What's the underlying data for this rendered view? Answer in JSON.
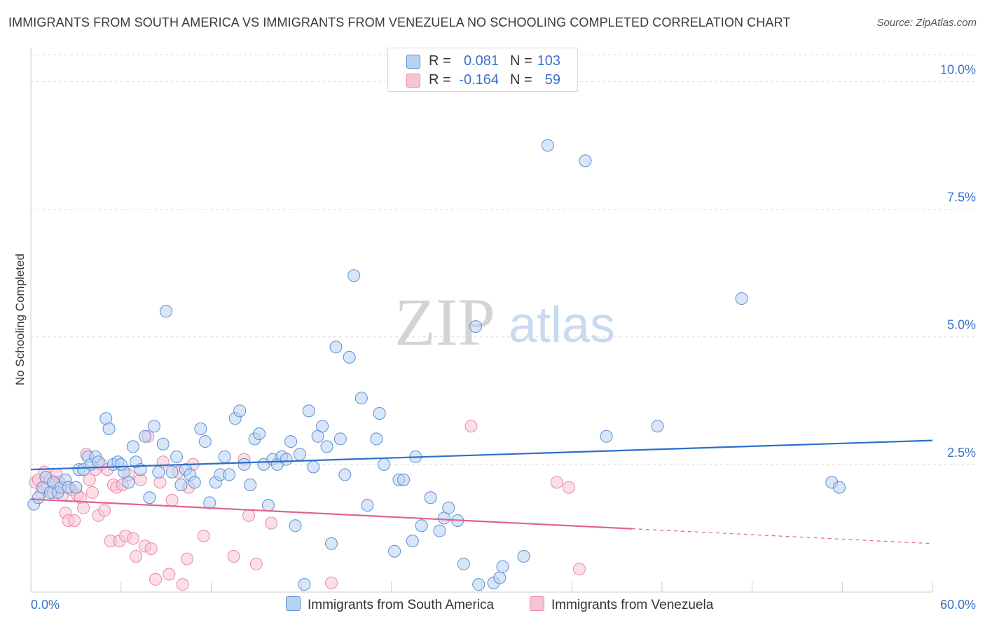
{
  "title": "IMMIGRANTS FROM SOUTH AMERICA VS IMMIGRANTS FROM VENEZUELA NO SCHOOLING COMPLETED CORRELATION CHART",
  "source": "Source: ZipAtlas.com",
  "watermark": {
    "zip": "ZIP",
    "atlas": "atlas"
  },
  "legend": {
    "rows": [
      {
        "r_label": "R =",
        "r_value": "0.081",
        "n_label": "N =",
        "n_value": "103"
      },
      {
        "r_label": "R =",
        "r_value": "-0.164",
        "n_label": "N =",
        "n_value": "59"
      }
    ]
  },
  "colors": {
    "blue_fill": "#b8d2f2",
    "blue_stroke": "#5b8fd4",
    "blue_line": "#2a6fcc",
    "pink_fill": "#f8c4d4",
    "pink_stroke": "#e888a8",
    "pink_line": "#e0628e",
    "axis_label": "#3a72c7",
    "grid": "#dddddd"
  },
  "chart_data": {
    "type": "scatter",
    "title": "IMMIGRANTS FROM SOUTH AMERICA VS IMMIGRANTS FROM VENEZUELA NO SCHOOLING COMPLETED CORRELATION CHART",
    "xlabel": "",
    "ylabel": "No Schooling Completed",
    "xlim": [
      0,
      60
    ],
    "ylim": [
      0,
      10.5
    ],
    "x_tick_labels": [
      "0.0%",
      "60.0%"
    ],
    "y_ticks": [
      2.5,
      5.0,
      7.5,
      10.0
    ],
    "y_tick_labels": [
      "2.5%",
      "5.0%",
      "7.5%",
      "10.0%"
    ],
    "grid": true,
    "legend_position": "bottom",
    "series": [
      {
        "name": "Immigrants from South America",
        "color": "blue",
        "r": 0.081,
        "n": 103,
        "trend": {
          "x0": 0,
          "y0": 2.4,
          "x1": 60,
          "y1": 2.97,
          "dashed_from": null
        },
        "points": [
          [
            0.2,
            1.72
          ],
          [
            0.5,
            1.85
          ],
          [
            0.8,
            2.05
          ],
          [
            1.0,
            2.25
          ],
          [
            1.3,
            1.95
          ],
          [
            1.5,
            2.15
          ],
          [
            1.8,
            1.95
          ],
          [
            2.0,
            2.05
          ],
          [
            2.3,
            2.2
          ],
          [
            2.5,
            2.05
          ],
          [
            3.2,
            2.4
          ],
          [
            3.5,
            2.4
          ],
          [
            3.8,
            2.65
          ],
          [
            4.0,
            2.5
          ],
          [
            4.3,
            2.65
          ],
          [
            5.0,
            3.4
          ],
          [
            5.2,
            3.2
          ],
          [
            5.5,
            2.5
          ],
          [
            5.8,
            2.55
          ],
          [
            6.2,
            2.35
          ],
          [
            6.5,
            2.15
          ],
          [
            6.8,
            2.85
          ],
          [
            7.0,
            2.55
          ],
          [
            7.3,
            2.4
          ],
          [
            7.6,
            3.05
          ],
          [
            7.9,
            1.85
          ],
          [
            8.2,
            3.25
          ],
          [
            8.5,
            2.35
          ],
          [
            8.8,
            2.9
          ],
          [
            9.0,
            5.5
          ],
          [
            9.4,
            2.35
          ],
          [
            9.7,
            2.65
          ],
          [
            10.0,
            2.1
          ],
          [
            10.3,
            2.4
          ],
          [
            10.6,
            2.3
          ],
          [
            10.9,
            2.15
          ],
          [
            11.3,
            3.2
          ],
          [
            11.6,
            2.95
          ],
          [
            11.9,
            1.75
          ],
          [
            12.3,
            2.15
          ],
          [
            12.6,
            2.3
          ],
          [
            12.9,
            2.65
          ],
          [
            13.2,
            2.3
          ],
          [
            13.6,
            3.4
          ],
          [
            13.9,
            3.55
          ],
          [
            14.2,
            2.5
          ],
          [
            14.6,
            2.1
          ],
          [
            14.9,
            3.0
          ],
          [
            15.2,
            3.1
          ],
          [
            15.5,
            2.5
          ],
          [
            15.8,
            1.7
          ],
          [
            16.1,
            2.6
          ],
          [
            16.4,
            2.5
          ],
          [
            16.7,
            2.65
          ],
          [
            17.0,
            2.6
          ],
          [
            17.3,
            2.95
          ],
          [
            17.6,
            1.3
          ],
          [
            17.9,
            2.7
          ],
          [
            18.2,
            0.15
          ],
          [
            18.5,
            3.55
          ],
          [
            18.8,
            2.45
          ],
          [
            19.1,
            3.05
          ],
          [
            19.4,
            3.25
          ],
          [
            19.7,
            2.85
          ],
          [
            20.0,
            0.95
          ],
          [
            20.3,
            4.8
          ],
          [
            20.6,
            3.0
          ],
          [
            20.9,
            2.3
          ],
          [
            21.2,
            4.6
          ],
          [
            21.5,
            6.2
          ],
          [
            22.0,
            3.8
          ],
          [
            22.4,
            1.7
          ],
          [
            23.0,
            3.0
          ],
          [
            23.2,
            3.5
          ],
          [
            23.5,
            2.5
          ],
          [
            24.2,
            0.8
          ],
          [
            24.5,
            2.2
          ],
          [
            24.8,
            2.2
          ],
          [
            25.4,
            1.0
          ],
          [
            25.6,
            2.65
          ],
          [
            26.0,
            1.3
          ],
          [
            26.6,
            1.85
          ],
          [
            27.2,
            1.2
          ],
          [
            27.5,
            1.45
          ],
          [
            27.8,
            1.65
          ],
          [
            28.4,
            1.4
          ],
          [
            28.8,
            0.55
          ],
          [
            29.6,
            5.2
          ],
          [
            29.8,
            0.15
          ],
          [
            30.8,
            0.18
          ],
          [
            31.2,
            0.28
          ],
          [
            31.4,
            0.5
          ],
          [
            32.8,
            0.7
          ],
          [
            34.4,
            8.75
          ],
          [
            36.9,
            8.45
          ],
          [
            38.3,
            3.05
          ],
          [
            41.7,
            3.25
          ],
          [
            47.3,
            5.75
          ],
          [
            53.3,
            2.15
          ],
          [
            53.8,
            2.05
          ],
          [
            4.5,
            2.55
          ],
          [
            3.0,
            2.05
          ],
          [
            6.0,
            2.5
          ]
        ]
      },
      {
        "name": "Immigrants from Venezuela",
        "color": "pink",
        "r": -0.164,
        "n": 59,
        "trend": {
          "x0": 0,
          "y0": 1.82,
          "x1": 60,
          "y1": 0.95,
          "dashed_from": 40
        },
        "points": [
          [
            0.3,
            2.15
          ],
          [
            0.5,
            2.2
          ],
          [
            0.7,
            1.95
          ],
          [
            0.9,
            2.35
          ],
          [
            1.1,
            2.05
          ],
          [
            1.3,
            2.2
          ],
          [
            1.5,
            1.95
          ],
          [
            1.7,
            2.3
          ],
          [
            1.9,
            2.15
          ],
          [
            2.1,
            1.9
          ],
          [
            2.3,
            1.55
          ],
          [
            2.5,
            1.4
          ],
          [
            2.7,
            2.0
          ],
          [
            2.9,
            1.4
          ],
          [
            3.1,
            1.9
          ],
          [
            3.3,
            1.85
          ],
          [
            3.5,
            1.65
          ],
          [
            3.7,
            2.7
          ],
          [
            3.9,
            2.2
          ],
          [
            4.1,
            1.95
          ],
          [
            4.3,
            2.4
          ],
          [
            4.5,
            1.5
          ],
          [
            4.7,
            2.5
          ],
          [
            4.9,
            1.6
          ],
          [
            5.1,
            2.4
          ],
          [
            5.3,
            1.0
          ],
          [
            5.5,
            2.1
          ],
          [
            5.7,
            2.05
          ],
          [
            5.9,
            1.0
          ],
          [
            6.1,
            2.1
          ],
          [
            6.3,
            1.1
          ],
          [
            6.5,
            2.3
          ],
          [
            6.8,
            1.05
          ],
          [
            7.0,
            0.7
          ],
          [
            7.3,
            2.2
          ],
          [
            7.6,
            0.9
          ],
          [
            7.8,
            3.05
          ],
          [
            8.0,
            0.85
          ],
          [
            8.3,
            0.25
          ],
          [
            8.6,
            2.15
          ],
          [
            8.8,
            2.55
          ],
          [
            9.2,
            0.35
          ],
          [
            9.4,
            1.8
          ],
          [
            9.8,
            2.35
          ],
          [
            10.1,
            0.15
          ],
          [
            10.4,
            0.65
          ],
          [
            10.5,
            2.05
          ],
          [
            10.8,
            2.5
          ],
          [
            11.5,
            1.1
          ],
          [
            13.5,
            0.7
          ],
          [
            14.2,
            2.6
          ],
          [
            14.5,
            1.5
          ],
          [
            15.0,
            0.55
          ],
          [
            16.0,
            1.35
          ],
          [
            20.0,
            0.18
          ],
          [
            29.3,
            3.25
          ],
          [
            35.0,
            2.15
          ],
          [
            35.8,
            2.05
          ],
          [
            36.5,
            0.45
          ]
        ]
      }
    ]
  },
  "bottom_legend": {
    "south_america": "Immigrants from South America",
    "venezuela": "Immigrants from Venezuela"
  }
}
